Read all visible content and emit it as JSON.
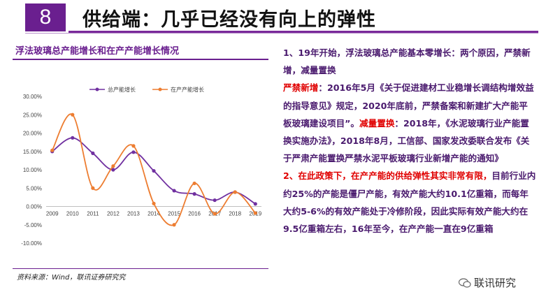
{
  "header": {
    "number": "8",
    "title": "供给端：几乎已经没有向上的弹性"
  },
  "chart_panel": {
    "title": "浮法玻璃总产能增长和在产产能增长情况",
    "source": "资料来源：Wind，联讯证券研究究"
  },
  "chart_data": {
    "type": "line",
    "x": [
      "2009",
      "2010",
      "2011",
      "2012",
      "2013",
      "2014",
      "2015",
      "2016",
      "2017",
      "2018",
      "2019"
    ],
    "series": [
      {
        "name": "总产能增长",
        "color": "#7030a0",
        "values": [
          15.0,
          18.7,
          14.5,
          10.0,
          14.8,
          9.7,
          4.3,
          3.4,
          1.7,
          3.9,
          0.7
        ]
      },
      {
        "name": "在产产能增长",
        "color": "#ed7d31",
        "values": [
          15.3,
          25.0,
          5.0,
          11.0,
          16.5,
          0.8,
          -5.0,
          6.3,
          -2.0,
          3.9,
          -1.8
        ]
      }
    ],
    "yticks": [
      "30.00%",
      "25.00%",
      "20.00%",
      "15.00%",
      "10.00%",
      "5.00%",
      "0.00%",
      "-5.00%",
      "-10.00%"
    ],
    "ylim": [
      -10,
      30
    ],
    "legend_position": "top"
  },
  "right_text": {
    "p1": "1、19年开始，浮法玻璃总产能基本零增长：两个原因，严禁新增，减量置换",
    "p2_label": "严禁新增",
    "p2_text": "：2016年5月《关于促进建材工业稳增长调结构增效益的指导意见》规定，2020年底前，严禁备案和新建扩大产能平板玻璃建设项目”。",
    "p2_label2": "减量置换",
    "p2_text2": "：2018年，《水泥玻璃行业产能置换实施办法》，2018年8月，工信部、国家发改委联合发布《关于严肃产能置换严禁水泥平板玻璃行业新增产能的通知》",
    "p3_lead": "2、在此政策下，在产产能的供给弹性其实非常有限，",
    "p3_text": "目前行业内约25%的产能是僵尸产能，有效产能大约10.1亿重箱，而每年大约5-6%的有效产能处于冷修阶段，因此实际有效产能大约在9.5亿重箱左右，16年至今，在产产能一直在9亿重箱"
  },
  "watermark": {
    "text": "联讯研究"
  }
}
